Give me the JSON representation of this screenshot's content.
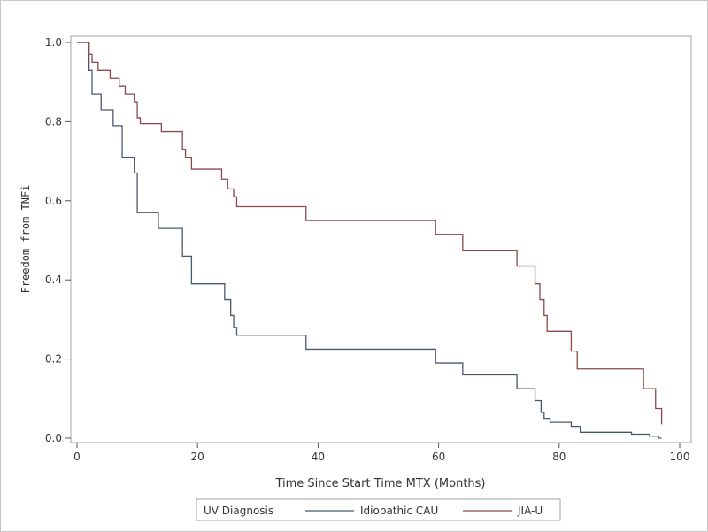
{
  "chart_data": {
    "type": "line",
    "xlabel": "Time Since Start Time MTX (Months)",
    "ylabel": "Freedom from TNFi",
    "xlim": [
      0,
      100
    ],
    "ylim": [
      0,
      1
    ],
    "x_ticks": [
      "0",
      "20",
      "40",
      "60",
      "80",
      "100"
    ],
    "y_ticks": [
      "0.0",
      "0.2",
      "0.4",
      "0.6",
      "0.8",
      "1.0"
    ],
    "grid": false,
    "legend": {
      "title": "UV Diagnosis",
      "placement": "bottom"
    },
    "series": [
      {
        "name": "Idiopathic CAU",
        "color": "#4a5670",
        "steps": [
          [
            0,
            1.0
          ],
          [
            2,
            0.93
          ],
          [
            2.5,
            0.87
          ],
          [
            4,
            0.83
          ],
          [
            6,
            0.79
          ],
          [
            7.5,
            0.71
          ],
          [
            9.5,
            0.67
          ],
          [
            10,
            0.57
          ],
          [
            13.5,
            0.53
          ],
          [
            17.5,
            0.46
          ],
          [
            19,
            0.39
          ],
          [
            24.5,
            0.35
          ],
          [
            25.5,
            0.31
          ],
          [
            26,
            0.28
          ],
          [
            26.5,
            0.26
          ],
          [
            38,
            0.225
          ],
          [
            59.5,
            0.19
          ],
          [
            64,
            0.16
          ],
          [
            73,
            0.125
          ],
          [
            76,
            0.095
          ],
          [
            77,
            0.065
          ],
          [
            77.5,
            0.05
          ],
          [
            78.5,
            0.04
          ],
          [
            82,
            0.03
          ],
          [
            83.5,
            0.015
          ],
          [
            92,
            0.01
          ],
          [
            95,
            0.005
          ],
          [
            96.5,
            0.0
          ]
        ],
        "end_x": 97
      },
      {
        "name": "JIA-U",
        "color": "#8a4848",
        "steps": [
          [
            0,
            1.0
          ],
          [
            2,
            0.97
          ],
          [
            2.5,
            0.95
          ],
          [
            3.5,
            0.93
          ],
          [
            5.5,
            0.91
          ],
          [
            7,
            0.89
          ],
          [
            8,
            0.87
          ],
          [
            9.5,
            0.85
          ],
          [
            10,
            0.81
          ],
          [
            10.5,
            0.795
          ],
          [
            14,
            0.775
          ],
          [
            17.5,
            0.73
          ],
          [
            18,
            0.71
          ],
          [
            19,
            0.68
          ],
          [
            24,
            0.655
          ],
          [
            25,
            0.63
          ],
          [
            26,
            0.61
          ],
          [
            26.5,
            0.585
          ],
          [
            38,
            0.55
          ],
          [
            59.5,
            0.515
          ],
          [
            64,
            0.475
          ],
          [
            73,
            0.435
          ],
          [
            76,
            0.39
          ],
          [
            76.8,
            0.35
          ],
          [
            77.5,
            0.31
          ],
          [
            78,
            0.27
          ],
          [
            82,
            0.22
          ],
          [
            83,
            0.175
          ],
          [
            94,
            0.125
          ],
          [
            96,
            0.075
          ],
          [
            97,
            0.035
          ]
        ],
        "end_x": 97
      }
    ]
  }
}
